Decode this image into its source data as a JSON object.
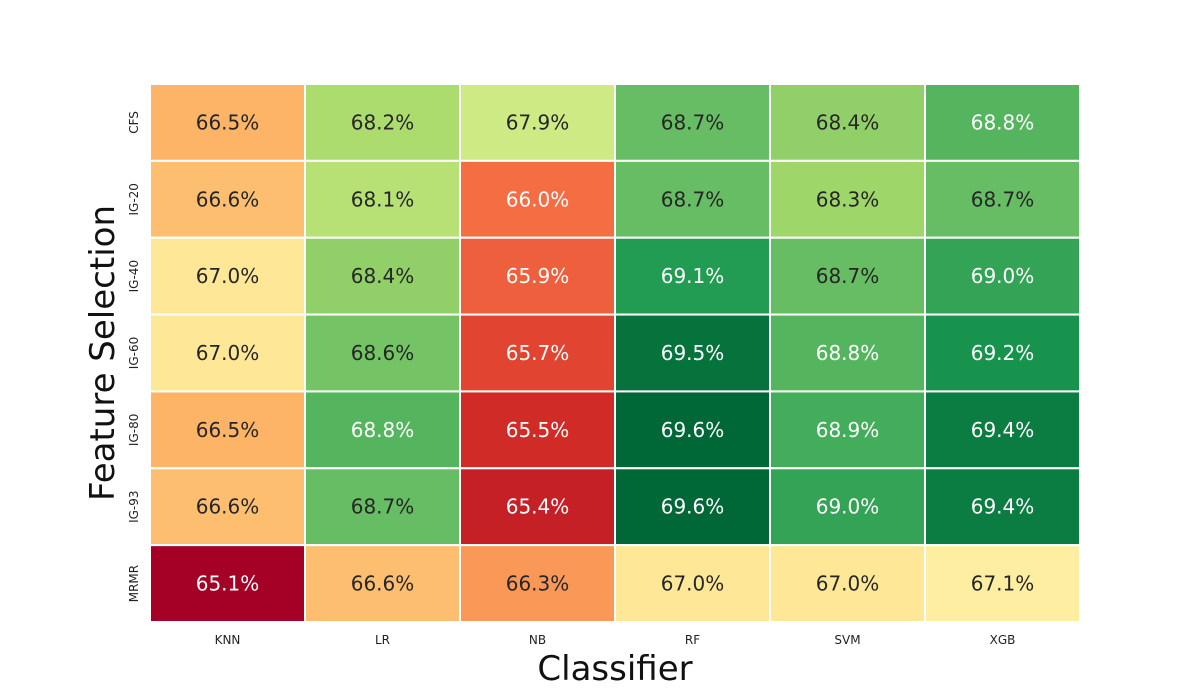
{
  "chart_data": {
    "type": "heatmap",
    "xlabel": "Classifier",
    "ylabel": "Feature Selection",
    "x_categories": [
      "KNN",
      "LR",
      "NB",
      "RF",
      "SVM",
      "XGB"
    ],
    "y_categories": [
      "CFS",
      "IG-20",
      "IG-40",
      "IG-60",
      "IG-80",
      "IG-93",
      "MRMR"
    ],
    "value_format": "percent_1dp",
    "colormap": "RdYlGn",
    "color_range": [
      65.1,
      69.6
    ],
    "values": [
      [
        66.5,
        68.2,
        67.9,
        68.7,
        68.4,
        68.8
      ],
      [
        66.6,
        68.1,
        66.0,
        68.7,
        68.3,
        68.7
      ],
      [
        67.0,
        68.4,
        65.9,
        69.1,
        68.7,
        69.0
      ],
      [
        67.0,
        68.6,
        65.7,
        69.5,
        68.8,
        69.2
      ],
      [
        66.5,
        68.8,
        65.5,
        69.6,
        68.9,
        69.4
      ],
      [
        66.6,
        68.7,
        65.4,
        69.6,
        69.0,
        69.4
      ],
      [
        65.1,
        66.6,
        66.3,
        67.0,
        67.0,
        67.1
      ]
    ],
    "labels": [
      [
        "66.5%",
        "68.2%",
        "67.9%",
        "68.7%",
        "68.4%",
        "68.8%"
      ],
      [
        "66.6%",
        "68.1%",
        "66.0%",
        "68.7%",
        "68.3%",
        "68.7%"
      ],
      [
        "67.0%",
        "68.4%",
        "65.9%",
        "69.1%",
        "68.7%",
        "69.0%"
      ],
      [
        "67.0%",
        "68.6%",
        "65.7%",
        "69.5%",
        "68.8%",
        "69.2%"
      ],
      [
        "66.5%",
        "68.8%",
        "65.5%",
        "69.6%",
        "68.9%",
        "69.4%"
      ],
      [
        "66.6%",
        "68.7%",
        "65.4%",
        "69.6%",
        "69.0%",
        "69.4%"
      ],
      [
        "65.1%",
        "66.6%",
        "66.3%",
        "67.0%",
        "67.0%",
        "67.1%"
      ]
    ],
    "grid_color": "#ffffff"
  }
}
